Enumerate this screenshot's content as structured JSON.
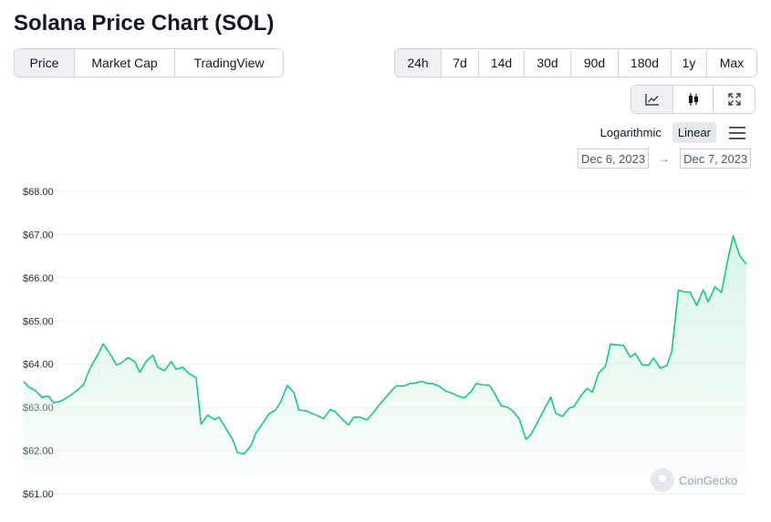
{
  "page": {
    "title": "Solana Price Chart (SOL)"
  },
  "view_tabs": [
    {
      "label": "Price",
      "active": true
    },
    {
      "label": "Market Cap",
      "active": false
    },
    {
      "label": "TradingView",
      "active": false
    }
  ],
  "range_tabs": [
    {
      "label": "24h",
      "active": true
    },
    {
      "label": "7d",
      "active": false
    },
    {
      "label": "14d",
      "active": false
    },
    {
      "label": "30d",
      "active": false
    },
    {
      "label": "90d",
      "active": false
    },
    {
      "label": "180d",
      "active": false
    },
    {
      "label": "1y",
      "active": false
    },
    {
      "label": "Max",
      "active": false
    }
  ],
  "tools": [
    {
      "icon": "line-chart-icon",
      "active": true
    },
    {
      "icon": "candlestick-icon",
      "active": false
    },
    {
      "icon": "fullscreen-icon",
      "active": false
    }
  ],
  "scale": {
    "log_label": "Logarithmic",
    "linear_label": "Linear",
    "active": "linear"
  },
  "date_range": {
    "from": "Dec 6, 2023",
    "arrow": "→",
    "to": "Dec 7, 2023"
  },
  "watermark": "CoinGecko",
  "colors": {
    "line": "#16c784",
    "fill_top": "#d6f5e3",
    "grid": "#eef0f2",
    "axis_text": "#1f2937"
  },
  "chart_data": {
    "type": "area",
    "ylim": [
      61.0,
      68.0
    ],
    "y_ticks": [
      "$68.00",
      "$67.00",
      "$66.00",
      "$65.00",
      "$64.00",
      "$63.00",
      "$62.00",
      "$61.00"
    ],
    "grid": true,
    "series": [
      {
        "values": [
          63.6,
          63.47,
          63.39,
          63.23,
          63.26,
          63.1,
          63.14,
          63.2,
          63.3,
          63.42,
          63.52,
          63.91,
          64.17,
          64.47,
          64.24,
          63.98,
          64.03,
          64.15,
          64.06,
          63.81,
          64.07,
          64.21,
          63.92,
          63.85,
          64.06,
          63.88,
          63.93,
          63.77,
          63.69,
          62.61,
          62.82,
          62.72,
          62.77,
          62.51,
          62.26,
          61.95,
          61.92,
          62.11,
          62.4,
          62.62,
          62.85,
          62.94,
          63.12,
          63.51,
          63.34,
          62.94,
          62.92,
          62.86,
          62.81,
          62.74,
          62.95,
          62.9,
          62.73,
          62.59,
          62.77,
          62.77,
          62.71,
          62.88,
          63.03,
          63.21,
          63.39,
          63.5,
          63.49,
          63.55,
          63.56,
          63.6,
          63.55,
          63.55,
          63.48,
          63.37,
          63.32,
          63.26,
          63.22,
          63.37,
          63.55,
          63.52,
          63.51,
          63.33,
          63.04,
          63.0,
          62.92,
          62.73,
          62.26,
          62.37,
          62.65,
          62.95,
          63.24,
          62.86,
          62.79,
          62.98,
          63.02,
          63.26,
          63.44,
          63.35,
          63.8,
          63.95,
          64.46,
          64.45,
          64.43,
          64.16,
          64.25,
          63.99,
          63.97,
          64.14,
          63.91,
          63.96,
          64.3,
          65.71,
          65.67,
          65.67,
          65.36,
          65.72,
          65.44,
          65.79,
          65.66,
          66.45,
          66.97,
          66.51,
          66.31
        ],
        "x": [
          0,
          3,
          7,
          11,
          15,
          18,
          22,
          25,
          29,
          33,
          36,
          40,
          44,
          48,
          52,
          56,
          59,
          63,
          67,
          70,
          74,
          78,
          81,
          85,
          89,
          92,
          96,
          100,
          104,
          107,
          111,
          115,
          118,
          122,
          126,
          129,
          133,
          137,
          140,
          144,
          148,
          152,
          155,
          159,
          163,
          166,
          170,
          174,
          177,
          181,
          185,
          188,
          192,
          196,
          199,
          203,
          207,
          211,
          214,
          218,
          222,
          225,
          229,
          233,
          236,
          240,
          244,
          247,
          251,
          255,
          259,
          262,
          266,
          270,
          273,
          277,
          281,
          284,
          288,
          292,
          295,
          299,
          303,
          306,
          310,
          314,
          318,
          321,
          325,
          329,
          332,
          336,
          340,
          343,
          347,
          351,
          354,
          358,
          362,
          366,
          369,
          373,
          377,
          380,
          384,
          388,
          391,
          395,
          399,
          402,
          406,
          410,
          413,
          417,
          421,
          425,
          428,
          432,
          436
        ]
      }
    ]
  }
}
